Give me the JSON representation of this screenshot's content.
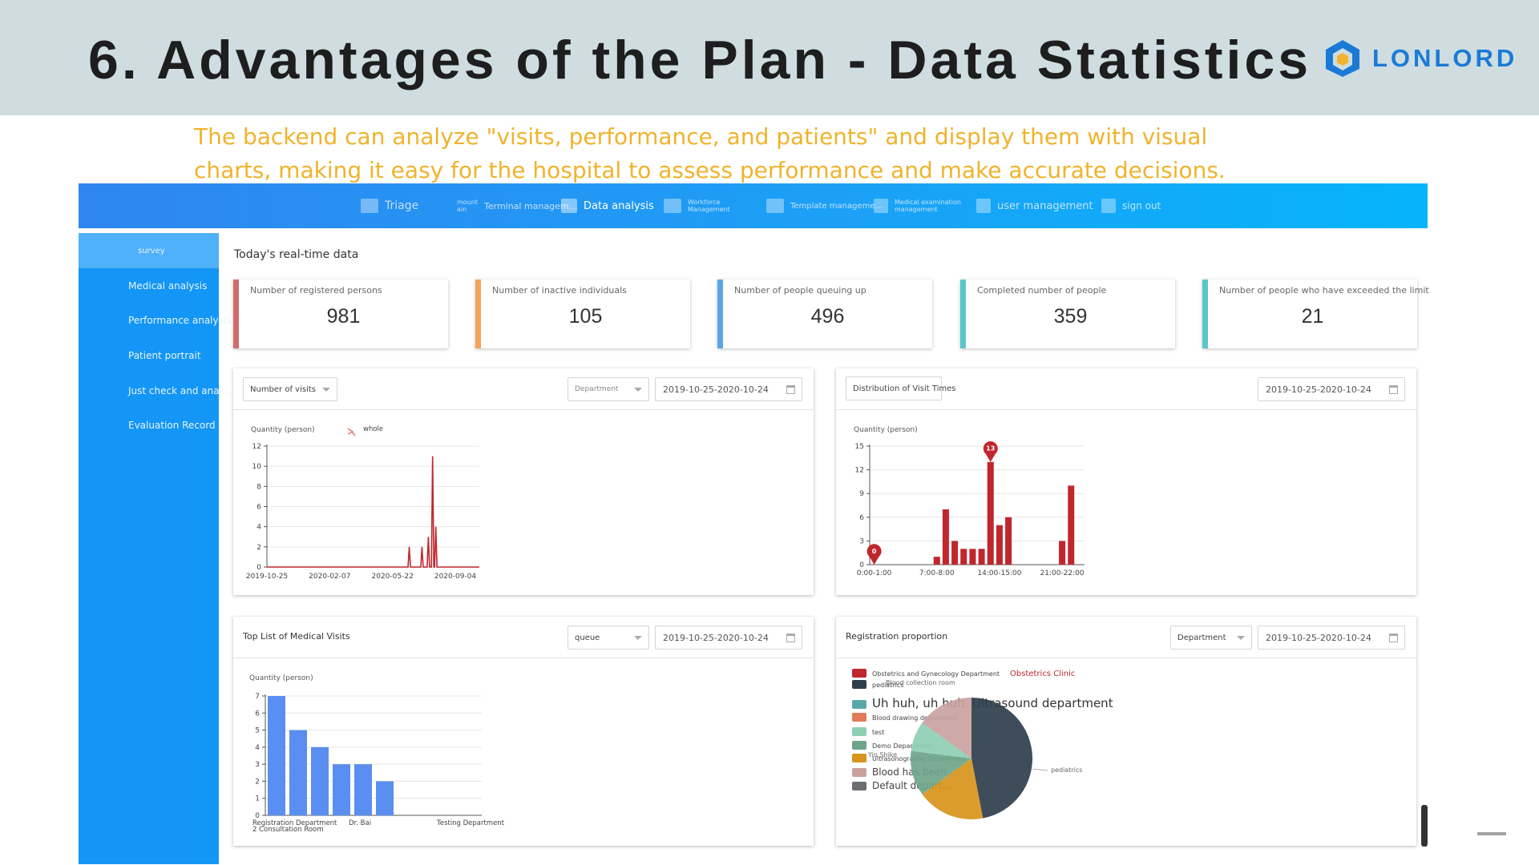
{
  "slide": {
    "title": "6. Advantages of the Plan - Data Statistics",
    "logo_text": "LONLORD",
    "subtitle_line1": "The backend can analyze \"visits, performance, and patients\" and display them with visual",
    "subtitle_line2": "charts, making it easy for the hospital to assess performance and make accurate decisions."
  },
  "nav": {
    "triage": "Triage",
    "mount": "mount\nain",
    "terminal": "Terminal managem...",
    "data_analysis": "Data analysis",
    "workforce": "Workforce\nManagement",
    "template": "Template manageme...",
    "medical_exam": "Medical examination\nmanagement",
    "user_mgmt": "user management",
    "sign_out": "sign out"
  },
  "sidebar": {
    "items": [
      {
        "label": "survey"
      },
      {
        "label": "Medical analysis"
      },
      {
        "label": "Performance analysis"
      },
      {
        "label": "Patient portrait"
      },
      {
        "label": "Just check and anal..."
      },
      {
        "label": "Evaluation Record"
      }
    ]
  },
  "realtime": {
    "title": "Today's real-time data",
    "cards": [
      {
        "label": "Number of registered persons",
        "value": "981",
        "color": "#d06c6c"
      },
      {
        "label": "Number of inactive individuals",
        "value": "105",
        "color": "#f3a45b"
      },
      {
        "label": "Number of people queuing up",
        "value": "496",
        "color": "#5ba5e8"
      },
      {
        "label": "Completed number of people",
        "value": "359",
        "color": "#5cc6c8"
      },
      {
        "label": "Number of people who have exceeded the limit",
        "value": "21",
        "color": "#5cc6c8"
      }
    ]
  },
  "panels": {
    "visits": {
      "select": "Number of visits",
      "dept_select": "Department",
      "date": "2019-10-25-2020-10-24"
    },
    "visit_times": {
      "title": "Distribution of Visit Times",
      "date": "2019-10-25-2020-10-24"
    },
    "top_list": {
      "title": "Top List of Medical Visits",
      "select": "queue",
      "date": "2019-10-25-2020-10-24"
    },
    "registration": {
      "title": "Registration proportion",
      "select": "Department",
      "date": "2019-10-25-2020-10-24"
    }
  },
  "chart_data": [
    {
      "type": "line",
      "ylabel": "Quantity (person)",
      "legend": [
        "whole"
      ],
      "ylim": [
        0,
        12
      ],
      "yticks": [
        "0",
        "2",
        "4",
        "6",
        "8",
        "10",
        "12"
      ],
      "xticks": [
        "2019-10-25",
        "2020-02-07",
        "2020-05-22",
        "2020-09-04"
      ],
      "series": [
        {
          "name": "whole",
          "color": "#c0272d",
          "spikes": [
            {
              "pos": 0.67,
              "value": 2
            },
            {
              "pos": 0.73,
              "value": 2
            },
            {
              "pos": 0.76,
              "value": 3
            },
            {
              "pos": 0.78,
              "value": 11
            },
            {
              "pos": 0.795,
              "value": 4
            }
          ]
        }
      ]
    },
    {
      "type": "bar",
      "ylabel": "Quantity (person)",
      "ylim": [
        0,
        15
      ],
      "yticks": [
        "0",
        "3",
        "6",
        "9",
        "12",
        "15"
      ],
      "xticks": [
        "0:00-1:00",
        "7:00-8:00",
        "14:00-15:00",
        "21:00-22:00"
      ],
      "values": [
        0,
        0,
        0,
        0,
        0,
        0,
        0,
        1,
        7,
        3,
        2,
        2,
        2,
        13,
        5,
        6,
        0,
        0,
        0,
        0,
        0,
        3,
        10,
        0
      ],
      "markers": [
        {
          "index": 0,
          "label": "0"
        },
        {
          "index": 13,
          "label": "13"
        }
      ],
      "color": "#c0272d"
    },
    {
      "type": "bar",
      "ylabel": "Quantity (person)",
      "ylim": [
        0,
        7
      ],
      "yticks": [
        "0",
        "1",
        "2",
        "3",
        "4",
        "5",
        "6",
        "7"
      ],
      "values": [
        7,
        5,
        4,
        3,
        3,
        2
      ],
      "xlabels": [
        "Registration Department",
        "Dr. Bai",
        "Testing Department"
      ],
      "xlabel2": "2 Consultation Room",
      "color": "#5a8ef0"
    },
    {
      "type": "pie",
      "legend": [
        {
          "name": "Obstetrics and Gynecology Department",
          "color": "#c0272d"
        },
        {
          "name": "pediatrics",
          "color": "#2e3e4b"
        },
        {
          "name": "Uh huh, uh huh. Ultrasound department",
          "color": "#5ba8a8"
        },
        {
          "name": "Blood drawing department",
          "color": "#e07b59"
        },
        {
          "name": "test",
          "color": "#8ecfb4"
        },
        {
          "name": "Demo Department",
          "color": "#6ea58a"
        },
        {
          "name": "Ultrasonography Department",
          "color": "#d8941c"
        },
        {
          "name": "Blood has been ...",
          "color": "#c9a2a0"
        },
        {
          "name": "Default depart...",
          "color": "#6d6e73"
        }
      ],
      "annotations": [
        "Obstetrics Clinic",
        "Blood collection room",
        "pediatrics",
        "Yin Shike",
        "pediatrics"
      ],
      "slices": [
        {
          "value": 47,
          "color": "#2e3e4b"
        },
        {
          "value": 18,
          "color": "#d8941c"
        },
        {
          "value": 12,
          "color": "#6ea58a"
        },
        {
          "value": 8,
          "color": "#8ecfb4"
        },
        {
          "value": 15,
          "color": "#c9a2a0"
        }
      ]
    }
  ]
}
